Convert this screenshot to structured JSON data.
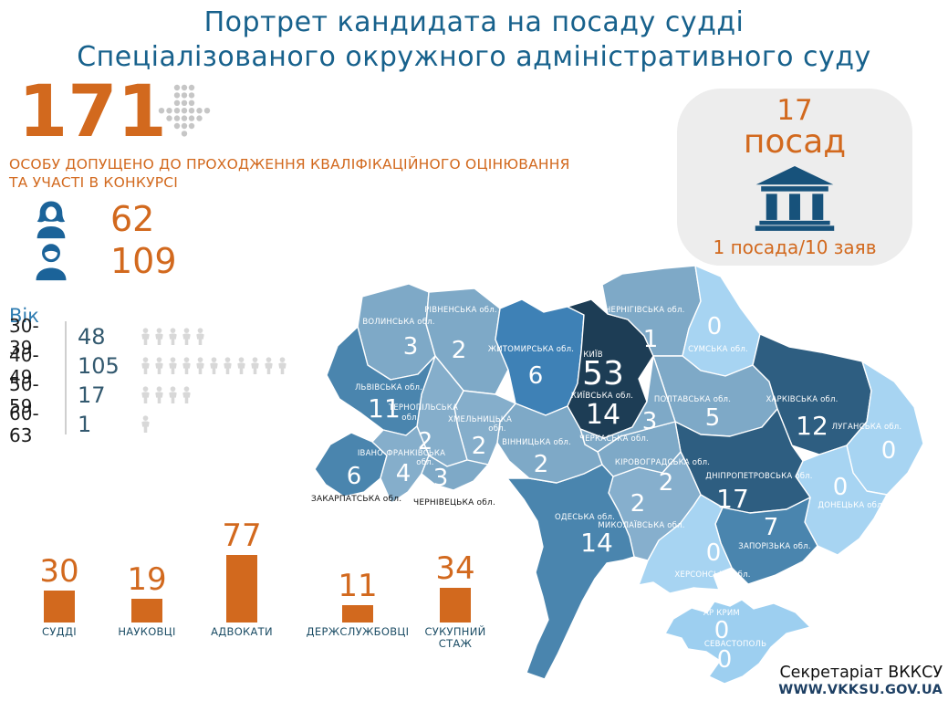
{
  "title": {
    "line1": "Портрет кандидата на посаду судді",
    "line2": "Спеціалізованого окружного адміністративного суду"
  },
  "admitted": {
    "value": "171",
    "caption_line1": "ОСОБУ ДОПУЩЕНО ДО ПРОХОДЖЕННЯ КВАЛІФІКАЦІЙНОГО ОЦІНЮВАННЯ",
    "caption_line2": "ТА УЧАСТІ В КОНКУРСІ"
  },
  "gender": {
    "female_count": "62",
    "male_count": "109"
  },
  "age": {
    "header": "Вік",
    "rows": [
      {
        "range": "30-39",
        "value": "48",
        "icons": 5
      },
      {
        "range": "40-49",
        "value": "105",
        "icons": 11
      },
      {
        "range": "50-59",
        "value": "17",
        "icons": 4
      },
      {
        "range": "60-63",
        "value": "1",
        "icons": 1
      }
    ]
  },
  "positions_badge": {
    "count": "17",
    "unit": "посад",
    "ratio": "1 посада/10 заяв"
  },
  "map": {
    "regions": [
      {
        "id": "volyn",
        "label": "ВОЛИНСЬКА обл.",
        "value": "3",
        "color": "#7ea9c7"
      },
      {
        "id": "rivne",
        "label": "РІВНЕНСЬКА обл.",
        "value": "2",
        "color": "#7ea9c7"
      },
      {
        "id": "zhytomyr",
        "label": "ЖИТОМИРСЬКА обл.",
        "value": "6",
        "color": "#3e81b6"
      },
      {
        "id": "kyiv-city",
        "label": "КИЇВ",
        "value": "53",
        "color": "#1d3d55"
      },
      {
        "id": "kyiv-obl",
        "label": "КИЇВСЬКА обл.",
        "value": "14",
        "color": "#1d3d55"
      },
      {
        "id": "chernihiv",
        "label": "ЧЕРНІГІВСЬКА обл.",
        "value": "1",
        "color": "#7ea9c7"
      },
      {
        "id": "sumy",
        "label": "СУМСЬКА обл.",
        "value": "0",
        "color": "#a7d4f2"
      },
      {
        "id": "poltava",
        "label": "ПОЛТАВСЬКА обл.",
        "value": "5",
        "color": "#7ea9c7"
      },
      {
        "id": "kharkiv",
        "label": "ХАРКІВСЬКА обл.",
        "value": "12",
        "color": "#2e5e81"
      },
      {
        "id": "luhansk",
        "label": "ЛУГАНСЬКА обл.",
        "value": "0",
        "color": "#a7d4f2"
      },
      {
        "id": "donetsk",
        "label": "ДОНЕЦЬКА обл.",
        "value": "0",
        "color": "#a7d4f2"
      },
      {
        "id": "dnipro",
        "label": "ДНІПРОПЕТРОВСЬКА обл.",
        "value": "17",
        "color": "#2e5e81"
      },
      {
        "id": "zaporizhzhia",
        "label": "ЗАПОРІЗЬКА обл.",
        "value": "7",
        "color": "#4a85ae"
      },
      {
        "id": "kherson",
        "label": "ХЕРСОНСЬКА обл.",
        "value": "0",
        "color": "#a7d4f2"
      },
      {
        "id": "mykolaiv",
        "label": "МИКОЛАЇВСЬКА обл.",
        "value": "2",
        "color": "#86afcd"
      },
      {
        "id": "odesa",
        "label": "ОДЕСЬКА обл.",
        "value": "14",
        "color": "#4a85ae"
      },
      {
        "id": "kirovohrad",
        "label": "КІРОВОГРАДСЬКА обл.",
        "value": "2",
        "color": "#7ea9c7"
      },
      {
        "id": "cherkasy",
        "label": "ЧЕРКАСЬКА обл.",
        "value": "3",
        "color": "#7ea9c7"
      },
      {
        "id": "vinnytsia",
        "label": "ВІННИЦЬКА обл.",
        "value": "2",
        "color": "#7ea9c7"
      },
      {
        "id": "khmelnytskyi",
        "label": "ХМЕЛЬНИЦЬКА",
        "label2": "обл.",
        "value": "2",
        "color": "#85aecb"
      },
      {
        "id": "ternopil",
        "label": "ТЕРНОПІЛЬСЬКА",
        "label2": "обл.",
        "value": "2",
        "color": "#85aecb"
      },
      {
        "id": "lviv",
        "label": "ЛЬВІВСЬКА обл.",
        "value": "11",
        "color": "#4a85ae"
      },
      {
        "id": "ivano-frankivsk",
        "label": "ІВАНО-ФРАНКІВСЬКА",
        "label2": "обл.",
        "value": "4",
        "color": "#85aecb"
      },
      {
        "id": "zakarpattia",
        "label": "ЗАКАРПАТСЬКА обл.",
        "value": "6",
        "color": "#4a85ae"
      },
      {
        "id": "chernivtsi",
        "label": "ЧЕРНІВЕЦЬКА обл.",
        "value": "3",
        "color": "#7ea9c7"
      },
      {
        "id": "crimea",
        "label": "АР КРИМ",
        "value": "0",
        "color": "#9dcff0"
      },
      {
        "id": "sevastopol",
        "label": "СЕВАСТОПОЛЬ",
        "value": "0",
        "color": "#9dcff0"
      }
    ]
  },
  "chart_data": [
    {
      "type": "bar",
      "categories": [
        "СУДДІ",
        "НАУКОВЦІ",
        "АДВОКАТИ",
        "ДЕРЖСЛУЖБОВЦІ",
        "СУКУПНИЙ СТАЖ"
      ],
      "values": [
        30,
        19,
        77,
        11,
        34
      ],
      "bar_color": "#d2691e",
      "legend": "none",
      "grid": false
    },
    {
      "type": "heatmap",
      "subtype": "choropleth-ukraine-oblasts",
      "categories": [
        "Волинська",
        "Рівненська",
        "Житомирська",
        "Київ",
        "Київська",
        "Чернігівська",
        "Сумська",
        "Полтавська",
        "Харківська",
        "Луганська",
        "Донецька",
        "Дніпропетровська",
        "Запорізька",
        "Херсонська",
        "Миколаївська",
        "Одеська",
        "Кіровоградська",
        "Черкаська",
        "Вінницька",
        "Хмельницька",
        "Тернопільська",
        "Львівська",
        "Івано-Франківська",
        "Закарпатська",
        "Чернівецька",
        "АР Крим",
        "Севастополь"
      ],
      "values": [
        3,
        2,
        6,
        53,
        14,
        1,
        0,
        5,
        12,
        0,
        0,
        17,
        7,
        0,
        2,
        14,
        2,
        3,
        2,
        2,
        2,
        11,
        4,
        6,
        3,
        0,
        0
      ],
      "color_scale": [
        "#a7d4f2",
        "#7ea9c7",
        "#4a85ae",
        "#2e5e81",
        "#1d3d55"
      ]
    }
  ],
  "footer": {
    "org": "Секретаріат ВККСУ",
    "site": "WWW.VKKSU.GOV.UA"
  },
  "colors": {
    "accent_orange": "#d2691e",
    "title_blue": "#17618c",
    "icon_blue": "#1b6399",
    "building_navy": "#17527b",
    "badge_bg": "#ededed"
  }
}
